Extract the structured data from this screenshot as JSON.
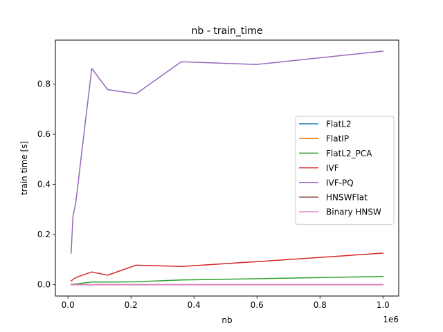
{
  "chart_data": {
    "type": "line",
    "title": "nb - train_time",
    "xlabel": "nb",
    "ylabel": "train time [s]",
    "x_offset_label": "1e6",
    "xlim": [
      -0.04,
      1.05
    ],
    "ylim": [
      -0.045,
      0.975
    ],
    "xticks": [
      0.0,
      0.2,
      0.4,
      0.6,
      0.8,
      1.0
    ],
    "xtick_labels": [
      "0.0",
      "0.2",
      "0.4",
      "0.6",
      "0.8",
      "1.0"
    ],
    "yticks": [
      0.0,
      0.2,
      0.4,
      0.6,
      0.8
    ],
    "ytick_labels": [
      "0.0",
      "0.2",
      "0.4",
      "0.6",
      "0.8"
    ],
    "legend_position": "center-right",
    "series": [
      {
        "name": "FlatL2",
        "color": "#1f77b4",
        "x": [
          0.01,
          0.0158,
          0.0251,
          0.0755,
          0.1258,
          0.2163,
          0.36,
          0.6,
          1.0
        ],
        "y": [
          0.0,
          0.0,
          0.0,
          0.0,
          0.0,
          0.0,
          0.0,
          0.0,
          0.0
        ]
      },
      {
        "name": "FlatIP",
        "color": "#ff7f0e",
        "x": [
          0.01,
          0.0158,
          0.0251,
          0.0755,
          0.1258,
          0.2163,
          0.36,
          0.6,
          1.0
        ],
        "y": [
          0.0,
          0.0,
          0.0,
          0.0,
          0.0,
          0.0,
          0.0,
          0.0,
          0.0
        ]
      },
      {
        "name": "FlatL2_PCA",
        "color": "#2ca02c",
        "x": [
          0.01,
          0.0158,
          0.0251,
          0.0755,
          0.1258,
          0.2163,
          0.36,
          0.6,
          1.0
        ],
        "y": [
          0.002,
          0.002,
          0.003,
          0.011,
          0.011,
          0.012,
          0.019,
          0.024,
          0.033
        ]
      },
      {
        "name": "IVF",
        "color": "#d62728",
        "x": [
          0.01,
          0.0158,
          0.0251,
          0.0755,
          0.1258,
          0.2163,
          0.36,
          0.6,
          1.0
        ],
        "y": [
          0.015,
          0.021,
          0.029,
          0.051,
          0.038,
          0.078,
          0.073,
          0.092,
          0.126
        ]
      },
      {
        "name": "IVF-PQ",
        "color": "#9467bd",
        "x": [
          0.01,
          0.0158,
          0.0251,
          0.0755,
          0.1258,
          0.2163,
          0.36,
          0.6,
          1.0
        ],
        "y": [
          0.126,
          0.272,
          0.331,
          0.862,
          0.778,
          0.761,
          0.889,
          0.878,
          0.931
        ]
      },
      {
        "name": "HNSWFlat",
        "color": "#8c564b",
        "x": [
          0.01,
          0.0158,
          0.0251,
          0.0755,
          0.1258,
          0.2163,
          0.36,
          0.6,
          1.0
        ],
        "y": [
          0.0,
          0.0,
          0.0,
          0.0,
          0.0,
          0.0,
          0.0,
          0.0,
          0.0
        ]
      },
      {
        "name": "Binary HNSW",
        "color": "#e377c2",
        "x": [
          0.01,
          0.0158,
          0.0251,
          0.0755,
          0.1258,
          0.2163,
          0.36,
          0.6,
          1.0
        ],
        "y": [
          0.0,
          0.0,
          0.0,
          0.0,
          0.0,
          0.0,
          0.0,
          0.0,
          0.0
        ]
      }
    ]
  }
}
